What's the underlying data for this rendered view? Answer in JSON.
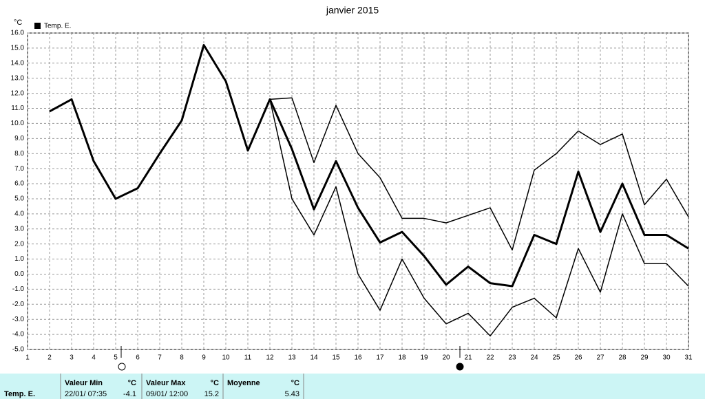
{
  "chart_data": {
    "type": "line",
    "title": "janvier 2015",
    "y_unit": "°C",
    "x": [
      1,
      2,
      3,
      4,
      5,
      6,
      7,
      8,
      9,
      10,
      11,
      12,
      13,
      14,
      15,
      16,
      17,
      18,
      19,
      20,
      21,
      22,
      23,
      24,
      25,
      26,
      27,
      28,
      29,
      30,
      31
    ],
    "xlim": [
      1,
      31
    ],
    "xticks": [
      1,
      2,
      3,
      4,
      5,
      6,
      7,
      8,
      9,
      10,
      11,
      12,
      13,
      14,
      15,
      16,
      17,
      18,
      19,
      20,
      21,
      22,
      23,
      24,
      25,
      26,
      27,
      28,
      29,
      30,
      31
    ],
    "ylim": [
      -5,
      16
    ],
    "yticks": [
      {
        "value": 16,
        "label": "16.0"
      },
      {
        "value": 15,
        "label": "15.0"
      },
      {
        "value": 14,
        "label": "14.0"
      },
      {
        "value": 13,
        "label": "13.0"
      },
      {
        "value": 12,
        "label": "12.0"
      },
      {
        "value": 11,
        "label": "11.0"
      },
      {
        "value": 10,
        "label": "10.0"
      },
      {
        "value": 9,
        "label": "9.0"
      },
      {
        "value": 8,
        "label": "8.0"
      },
      {
        "value": 7,
        "label": "7.0"
      },
      {
        "value": 6,
        "label": "6.0"
      },
      {
        "value": 5,
        "label": "5.0"
      },
      {
        "value": 4,
        "label": "4.0"
      },
      {
        "value": 3,
        "label": "3.0"
      },
      {
        "value": 2,
        "label": "2.0"
      },
      {
        "value": 1,
        "label": "1.0"
      },
      {
        "value": 0,
        "label": "0.0"
      },
      {
        "value": -1,
        "label": "-1.0"
      },
      {
        "value": -2,
        "label": "-2.0"
      },
      {
        "value": -3,
        "label": "-3.0"
      },
      {
        "value": -4,
        "label": "-4.0"
      },
      {
        "value": -5,
        "label": "-5.0"
      }
    ],
    "grid": true,
    "series": [
      {
        "name": "Temp. E.",
        "color": "#000000",
        "linewidth": 3,
        "values": [
          null,
          10.8,
          11.6,
          7.5,
          5.0,
          5.7,
          8.0,
          10.2,
          15.2,
          12.8,
          8.2,
          11.6,
          8.3,
          4.3,
          7.5,
          4.4,
          2.1,
          2.8,
          1.2,
          -0.7,
          0.5,
          -0.6,
          -0.8,
          2.6,
          2.0,
          6.8,
          2.8,
          6.0,
          2.6,
          2.6,
          1.7
        ]
      },
      {
        "color": "#000000",
        "linewidth": 1.5,
        "values": [
          null,
          10.8,
          11.6,
          7.5,
          5.0,
          5.7,
          8.0,
          10.2,
          15.2,
          12.8,
          8.2,
          11.6,
          11.7,
          7.4,
          11.2,
          8.0,
          6.4,
          3.7,
          3.7,
          3.4,
          3.9,
          4.4,
          1.6,
          6.9,
          8.0,
          9.5,
          8.6,
          9.3,
          4.6,
          6.3,
          3.8
        ]
      },
      {
        "color": "#000000",
        "linewidth": 1.5,
        "values": [
          null,
          10.8,
          11.6,
          7.5,
          5.0,
          5.7,
          8.0,
          10.2,
          15.2,
          12.8,
          8.2,
          11.6,
          5.0,
          2.6,
          5.8,
          0.0,
          -2.4,
          1.0,
          -1.6,
          -3.3,
          -2.6,
          -4.1,
          -2.2,
          -1.6,
          -2.9,
          1.7,
          -1.2,
          4.0,
          0.7,
          0.7,
          -0.8
        ]
      }
    ]
  },
  "footer": {
    "name": "Temp. E.",
    "min": {
      "label": "Valeur Min",
      "unit": "°C",
      "time": "22/01/ 07:35",
      "value": "-4.1"
    },
    "max": {
      "label": "Valeur Max",
      "unit": "°C",
      "time": "09/01/ 12:00",
      "value": "15.2"
    },
    "mean": {
      "label": "Moyenne",
      "unit": "°C",
      "value": "5.43"
    }
  }
}
